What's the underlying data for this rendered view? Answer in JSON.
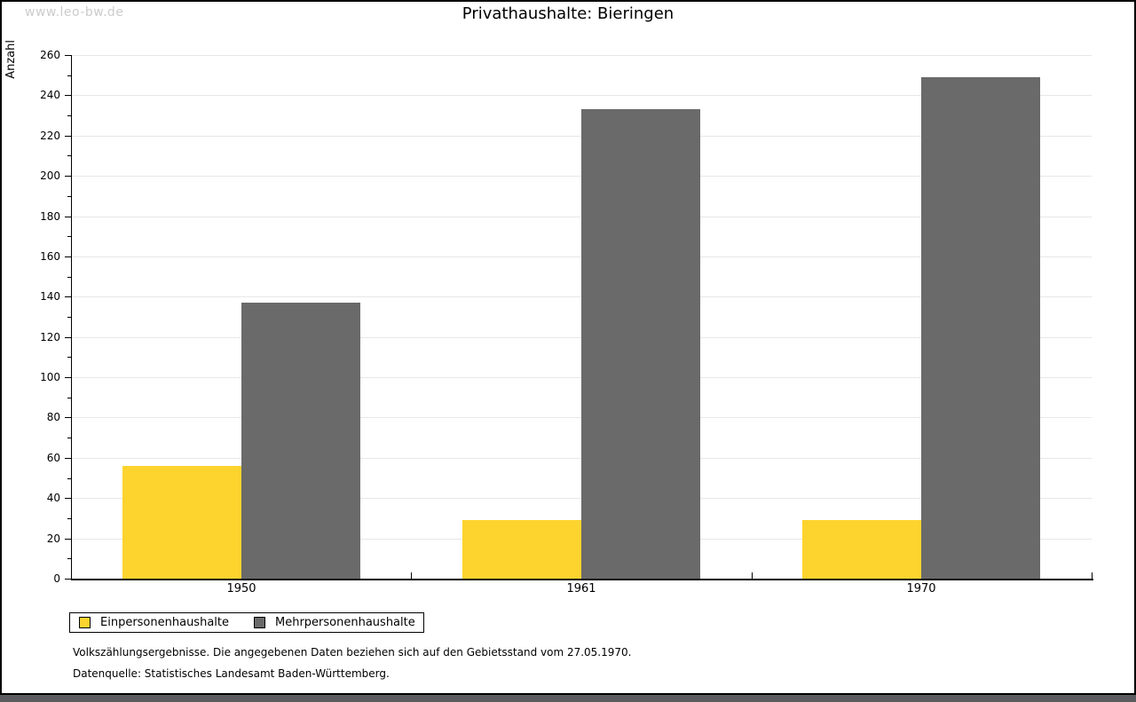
{
  "watermark": "www.leo-bw.de",
  "title": "Privathaushalte: Bieringen",
  "chart_data": {
    "type": "bar",
    "title": "Privathaushalte: Bieringen",
    "xlabel": "",
    "ylabel": "Anzahl",
    "categories": [
      "1950",
      "1961",
      "1970"
    ],
    "series": [
      {
        "name": "Einpersonenhaushalte",
        "color": "#fdd32e",
        "values": [
          56,
          29,
          29
        ]
      },
      {
        "name": "Mehrpersonenhaushalte",
        "color": "#6a6a6a",
        "values": [
          137,
          233,
          249
        ]
      }
    ],
    "ylim": [
      0,
      260
    ],
    "ytick_step": 20,
    "yminor_step": 10,
    "grid": true,
    "legend_position": "bottom-left"
  },
  "footnotes": [
    "Volkszählungsergebnisse. Die angegebenen Daten beziehen sich auf den Gebietsstand vom 27.05.1970.",
    "Datenquelle: Statistisches Landesamt Baden-Württemberg."
  ],
  "colors": {
    "background": "#ffffff",
    "frame_border": "#000000",
    "bottom_strip": "#5a5a5f",
    "gridline": "#e7e7e7",
    "watermark": "#cccccc",
    "series_1": "#fdd32e",
    "series_2": "#6a6a6a"
  }
}
